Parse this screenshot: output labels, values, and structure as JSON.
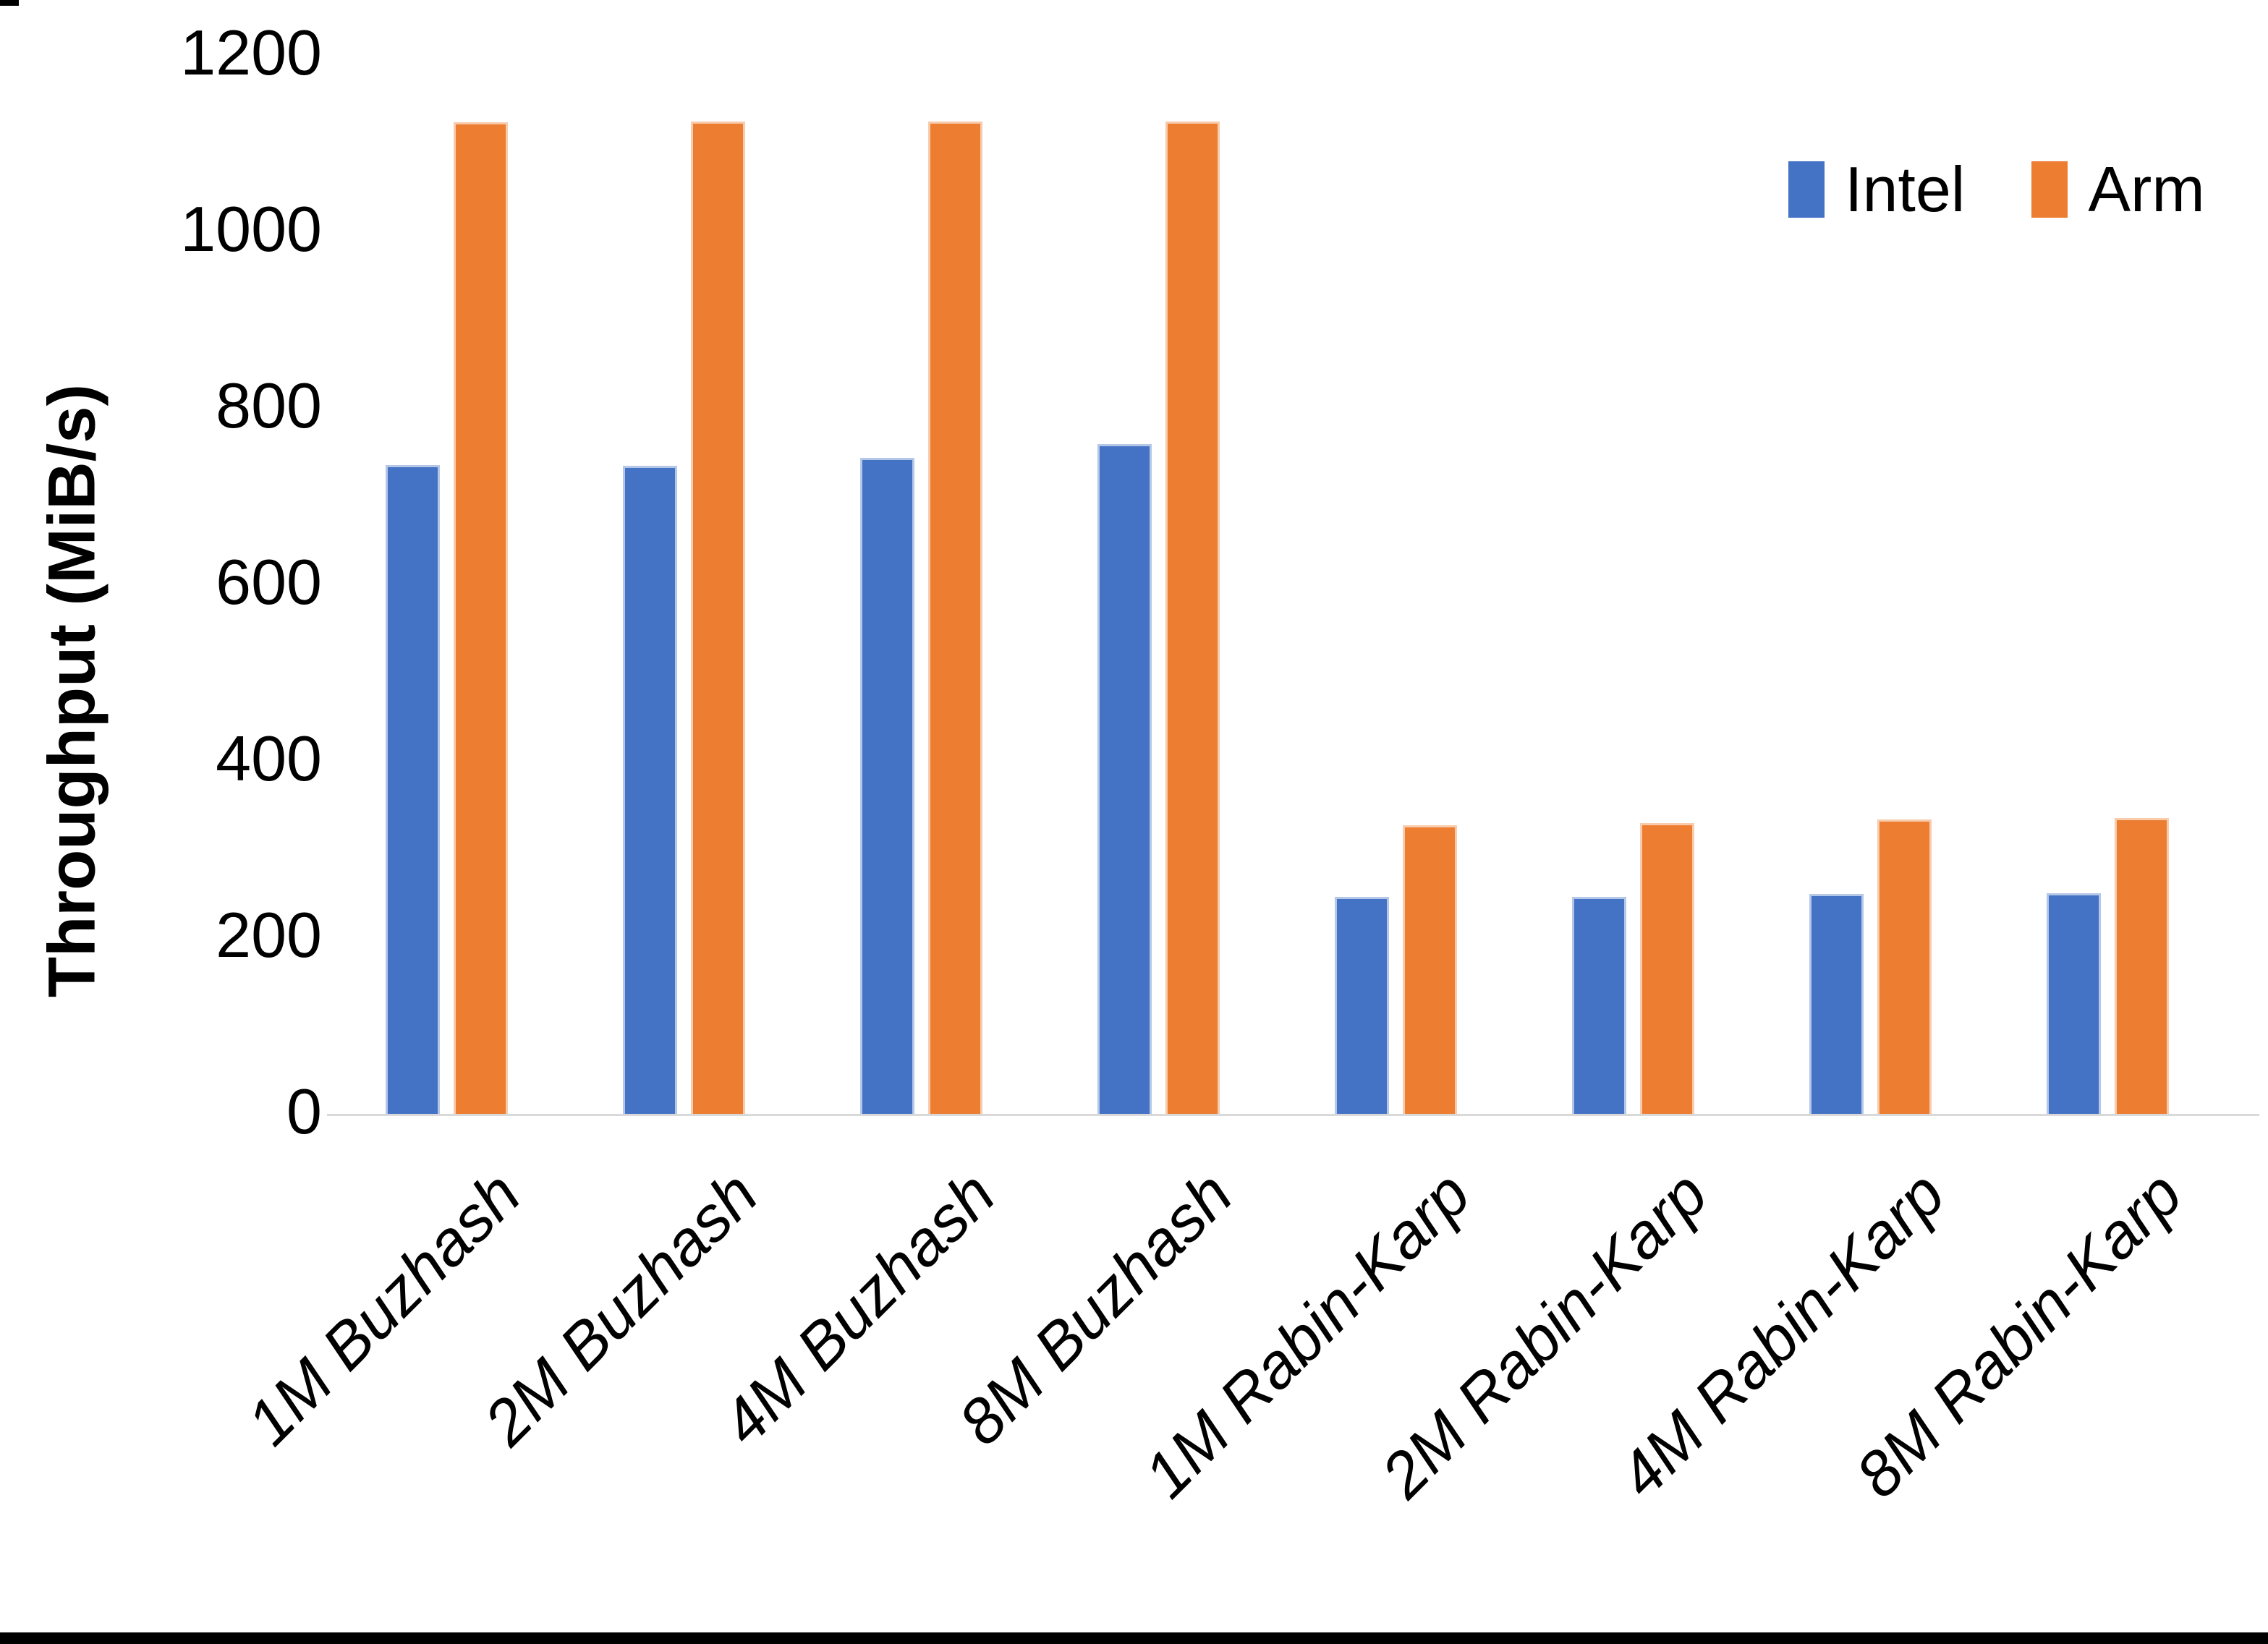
{
  "chart_data": {
    "type": "bar",
    "title": "",
    "xlabel": "",
    "ylabel": "Throughput (MiB/s)",
    "ylim": [
      0,
      1200
    ],
    "yticks": [
      0,
      200,
      400,
      600,
      800,
      1000,
      1200
    ],
    "grid": false,
    "legend_position": "top-right",
    "axis_line_color": "#d9d9d9",
    "categories": [
      "1M Buzhash",
      "2M Buzhash",
      "4M Buzhash",
      "8M Buzhash",
      "1M Rabin-Karp",
      "2M Rabin-Karp",
      "4M Rabin-Karp",
      "8M Rabin-Karp"
    ],
    "series": [
      {
        "name": "Intel",
        "color": "#4472C4",
        "values": [
          736,
          735,
          744,
          760,
          247,
          247,
          250,
          251
        ]
      },
      {
        "name": "Arm",
        "color": "#ED7D31",
        "values": [
          1124,
          1125,
          1125,
          1125,
          328,
          330,
          334,
          336
        ]
      }
    ]
  }
}
